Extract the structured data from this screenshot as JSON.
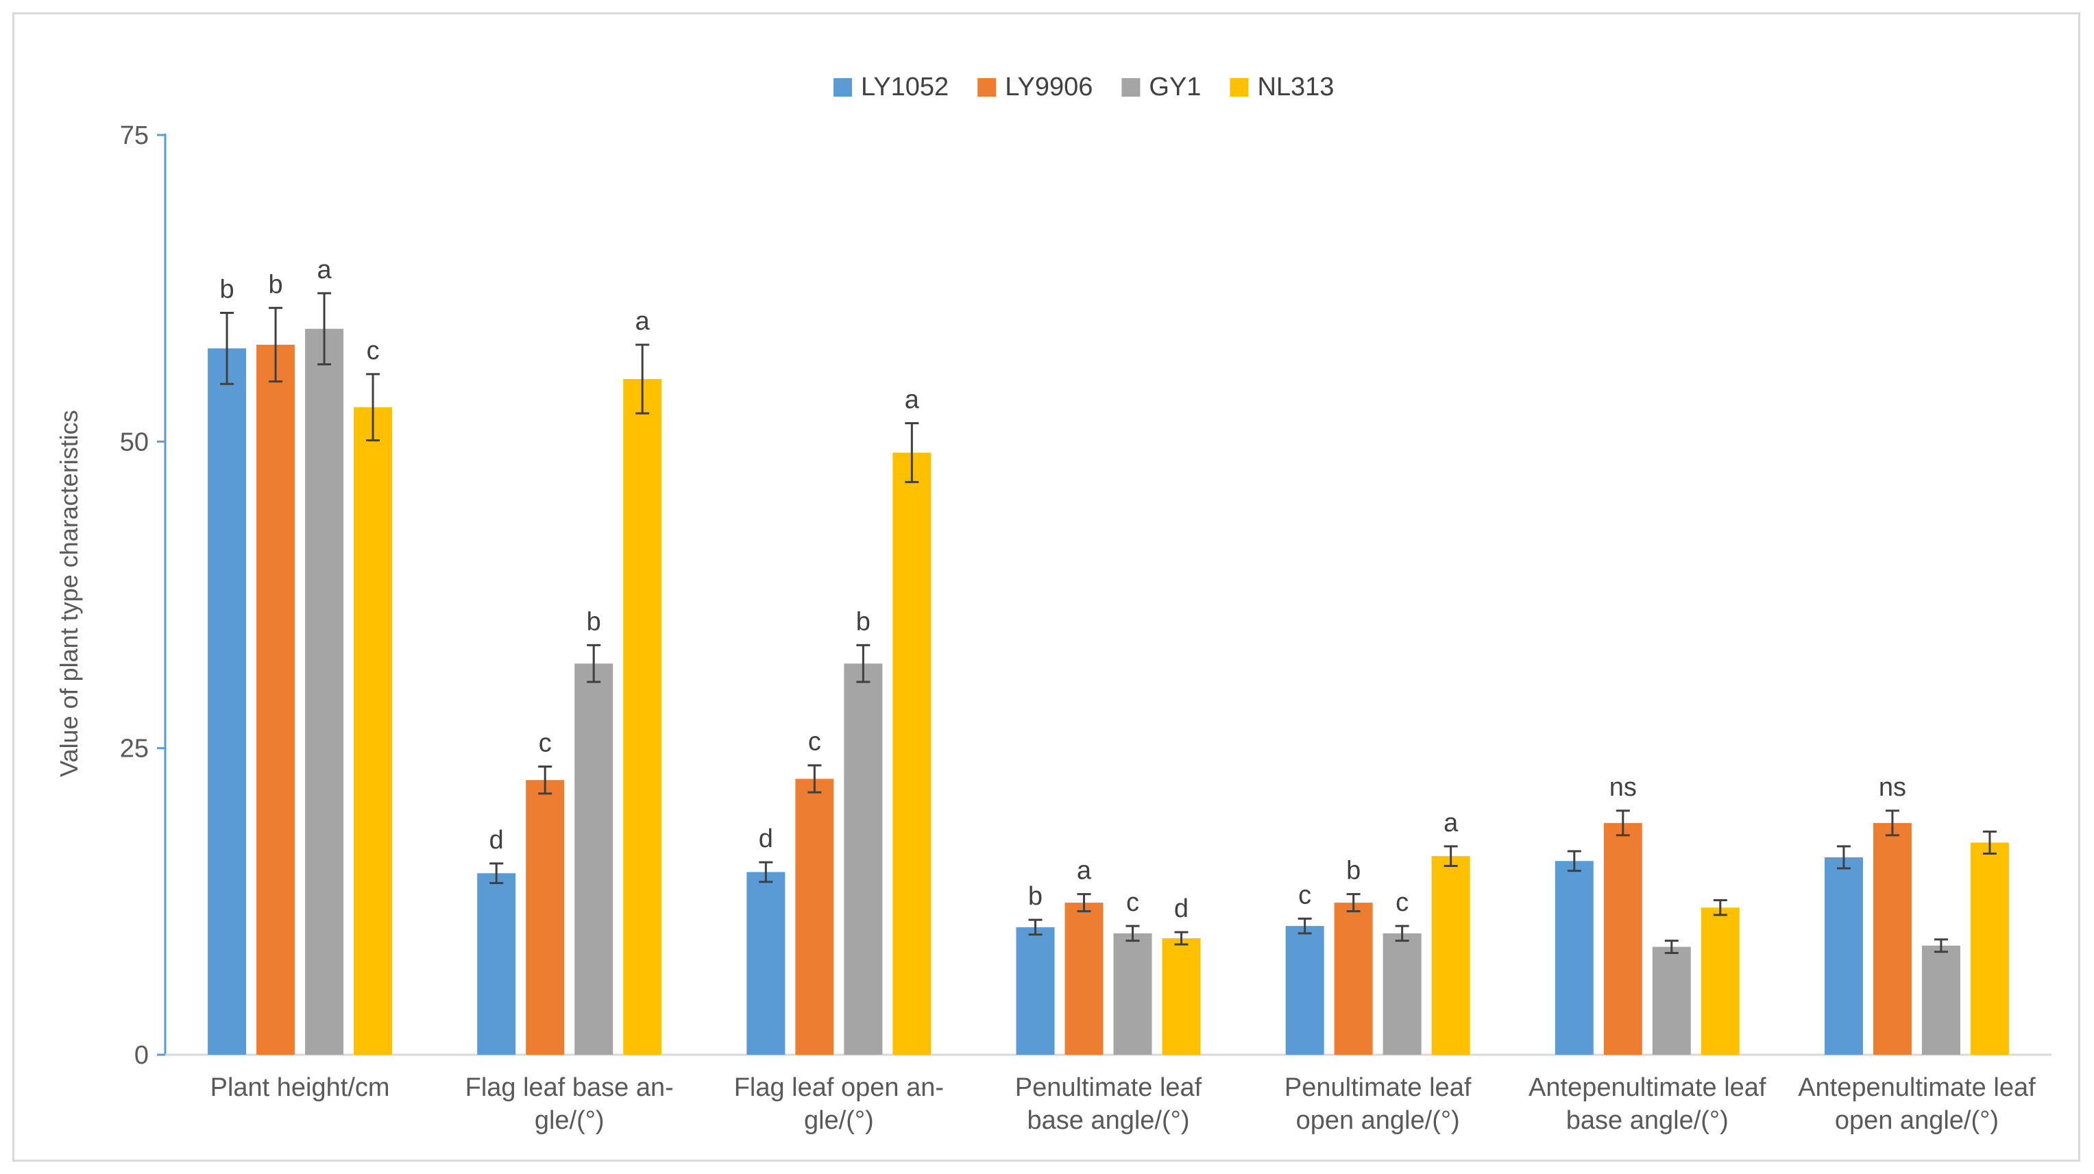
{
  "chart_data": {
    "type": "bar",
    "title": "",
    "xlabel": "",
    "ylabel": "Value of  plant type characteristics",
    "ylim": [
      0,
      75
    ],
    "yticks": [
      0,
      25,
      50,
      75
    ],
    "legend_position": "top-center",
    "colors": [
      "#5b9bd5",
      "#ed7d31",
      "#a5a5a5",
      "#ffc000"
    ],
    "categories": [
      [
        "Plant height/cm"
      ],
      [
        "Flag leaf base an-",
        "gle/(°)"
      ],
      [
        "Flag leaf open an-",
        "gle/(°)"
      ],
      [
        "Penultimate leaf",
        "base angle/(°)"
      ],
      [
        "Penultimate leaf",
        "open angle/(°)"
      ],
      [
        "Antepenultimate leaf",
        "base angle/(°)"
      ],
      [
        "Antepenultimate leaf",
        "open angle/(°)"
      ]
    ],
    "series": [
      {
        "name": "LY1052",
        "values": [
          57.6,
          14.8,
          14.9,
          10.4,
          10.5,
          15.8,
          16.1
        ],
        "errors": [
          2.9,
          0.8,
          0.8,
          0.6,
          0.6,
          0.8,
          0.9
        ],
        "labels": [
          "b",
          "d",
          "d",
          "b",
          "c",
          "",
          ""
        ]
      },
      {
        "name": "LY9906",
        "values": [
          57.9,
          22.4,
          22.5,
          12.4,
          12.4,
          18.9,
          18.9
        ],
        "errors": [
          3.0,
          1.1,
          1.1,
          0.7,
          0.7,
          1.0,
          1.0
        ],
        "labels": [
          "b",
          "c",
          "c",
          "a",
          "b",
          "ns",
          "ns"
        ]
      },
      {
        "name": "GY1",
        "values": [
          59.2,
          31.9,
          31.9,
          9.9,
          9.9,
          8.8,
          8.9
        ],
        "errors": [
          2.9,
          1.5,
          1.5,
          0.6,
          0.6,
          0.5,
          0.5
        ],
        "labels": [
          "a",
          "b",
          "b",
          "c",
          "c",
          "",
          ""
        ]
      },
      {
        "name": "NL313",
        "values": [
          52.8,
          55.1,
          49.1,
          9.5,
          16.2,
          12.0,
          17.3
        ],
        "errors": [
          2.7,
          2.8,
          2.4,
          0.5,
          0.8,
          0.6,
          0.9
        ],
        "labels": [
          "c",
          "a",
          "a",
          "d",
          "a",
          "",
          ""
        ]
      }
    ]
  }
}
